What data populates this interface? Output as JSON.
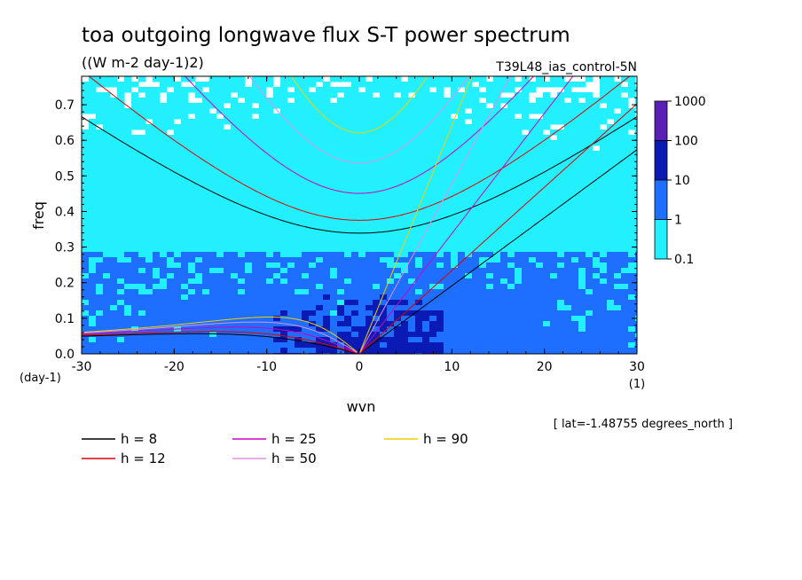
{
  "chart_data": {
    "type": "heatmap",
    "title": "toa outgoing longwave flux S-T power spectrum",
    "units_label": "((W m-2 day-1)2)",
    "experiment_label": "T39L48_ias_control-5N",
    "xlabel": "wvn",
    "ylabel": "freq",
    "x_unit_label": "(1)",
    "y_unit_label": "(day-1)",
    "xlim": [
      -30,
      30
    ],
    "ylim": [
      0,
      0.78
    ],
    "x_ticks": [
      {
        "value": -30,
        "label": "-30"
      },
      {
        "value": -20,
        "label": "-20"
      },
      {
        "value": -10,
        "label": "-10"
      },
      {
        "value": 0,
        "label": "0"
      },
      {
        "value": 10,
        "label": "10"
      },
      {
        "value": 20,
        "label": "20"
      },
      {
        "value": 30,
        "label": "30"
      }
    ],
    "y_ticks": [
      {
        "value": 0.0,
        "label": "0.0"
      },
      {
        "value": 0.1,
        "label": "0.1"
      },
      {
        "value": 0.2,
        "label": "0.2"
      },
      {
        "value": 0.3,
        "label": "0.3"
      },
      {
        "value": 0.4,
        "label": "0.4"
      },
      {
        "value": 0.5,
        "label": "0.5"
      },
      {
        "value": 0.6,
        "label": "0.6"
      },
      {
        "value": 0.7,
        "label": "0.7"
      }
    ],
    "colorbar": {
      "levels": [
        {
          "value": 1000,
          "label": "1000"
        },
        {
          "value": 100,
          "label": "100"
        },
        {
          "value": 10,
          "label": "10"
        },
        {
          "value": 1,
          "label": "1"
        },
        {
          "value": 0.1,
          "label": "0.1"
        }
      ],
      "colors": [
        "#5a1fb4",
        "#0a1ab4",
        "#1e6eff",
        "#22f0ff"
      ]
    },
    "shading_colors": {
      "c1": "#22f0ff",
      "c10": "#1e6eff",
      "c100": "#0a1ab4"
    },
    "dispersion_curves": [
      {
        "label": "h =  8",
        "h": 8,
        "color": "#000000"
      },
      {
        "label": "h = 12",
        "h": 12,
        "color": "#e00000"
      },
      {
        "label": "h = 25",
        "h": 25,
        "color": "#d000c0"
      },
      {
        "label": "h = 50",
        "h": 50,
        "color": "#e090e0"
      },
      {
        "label": "h = 90",
        "h": 90,
        "color": "#f0d000"
      }
    ],
    "annotation": "[ lat=-1.48755 degrees_north ]"
  }
}
